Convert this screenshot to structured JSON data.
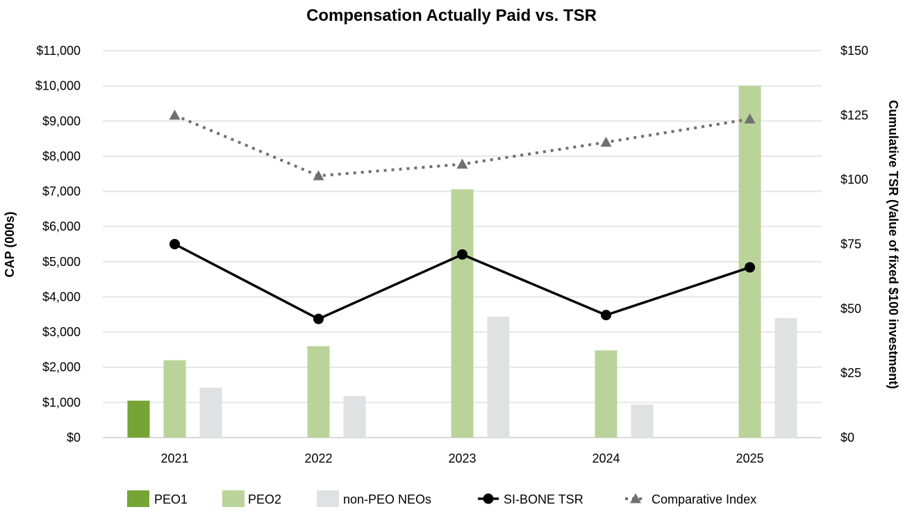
{
  "chart_data": {
    "type": "bar",
    "title": "Compensation Actually Paid vs. TSR",
    "categories": [
      "2021",
      "2022",
      "2023",
      "2024",
      "2025"
    ],
    "y_left": {
      "label": "CAP (000s)",
      "range": [
        0,
        11000
      ],
      "ticks": [
        0,
        1000,
        2000,
        3000,
        4000,
        5000,
        6000,
        7000,
        8000,
        9000,
        10000,
        11000
      ],
      "tick_labels": [
        "$0",
        "$1,000",
        "$2,000",
        "$3,000",
        "$4,000",
        "$5,000",
        "$6,000",
        "$7,000",
        "$8,000",
        "$9,000",
        "$10,000",
        "$11,000"
      ]
    },
    "y_right": {
      "label": "Cumulative TSR (Value of fixed $100 investment)",
      "range": [
        0,
        150
      ],
      "ticks": [
        0,
        25,
        50,
        75,
        100,
        125,
        150
      ],
      "tick_labels": [
        "$0",
        "$25",
        "$50",
        "$75",
        "$100",
        "$125",
        "$150"
      ]
    },
    "grid": true,
    "legend_position": "bottom",
    "bar_series": [
      {
        "name": "PEO1",
        "color": "#76a535",
        "values": [
          1050,
          null,
          null,
          null,
          null
        ]
      },
      {
        "name": "PEO2",
        "color": "#bad39a",
        "values": [
          2200,
          2600,
          7060,
          2480,
          10000
        ]
      },
      {
        "name": "non-PEO NEOs",
        "color": "#dfe1e2",
        "values": [
          1420,
          1180,
          3440,
          940,
          3400
        ]
      }
    ],
    "line_series": [
      {
        "name": "SI-BONE TSR",
        "color": "#000000",
        "style": "solid",
        "marker": "circle",
        "axis": "right",
        "values": [
          75,
          46,
          71,
          47.5,
          66
        ]
      },
      {
        "name": "Comparative Index",
        "color": "#707070",
        "style": "dotted",
        "marker": "triangle",
        "axis": "right",
        "values": [
          125,
          101.5,
          106,
          114.5,
          123.5
        ]
      }
    ]
  }
}
